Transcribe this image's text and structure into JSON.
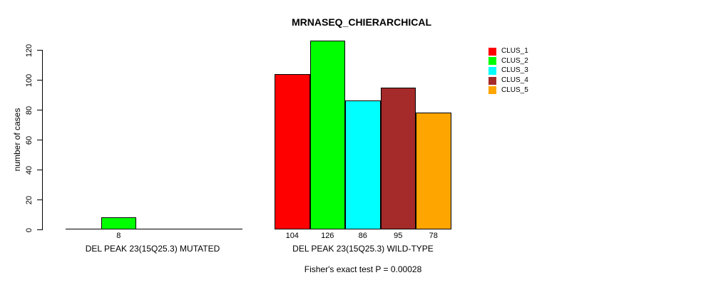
{
  "chart_data": {
    "type": "bar",
    "title": "MRNASEQ_CHIERARCHICAL",
    "ylabel": "number of cases",
    "ylim": [
      0,
      120
    ],
    "yticks": [
      0,
      20,
      40,
      60,
      80,
      100,
      120
    ],
    "legend_position": "top-right",
    "legend": [
      {
        "label": "CLUS_1",
        "color": "#FF0000"
      },
      {
        "label": "CLUS_2",
        "color": "#00FF00"
      },
      {
        "label": "CLUS_3",
        "color": "#00FFFF"
      },
      {
        "label": "CLUS_4",
        "color": "#A52A2A"
      },
      {
        "label": "CLUS_5",
        "color": "#FFA500"
      }
    ],
    "groups": [
      {
        "label": "DEL PEAK 23(15Q25.3) MUTATED",
        "values": [
          0,
          8,
          0,
          0,
          0
        ]
      },
      {
        "label": "DEL PEAK 23(15Q25.3) WILD-TYPE",
        "values": [
          104,
          126,
          86,
          95,
          78
        ]
      }
    ],
    "footnote": "Fisher's exact test P = 0.00028"
  }
}
